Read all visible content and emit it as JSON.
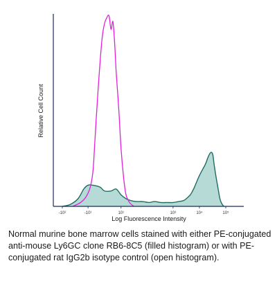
{
  "chart_data": {
    "type": "area",
    "xlabel": "Log Fluorescence Intensity",
    "ylabel": "Relative Cell Count",
    "x_scale": "biexponential",
    "x_ticks": [
      {
        "value": -100,
        "label": "-10²"
      },
      {
        "value": -10,
        "label": "-10¹"
      },
      {
        "value": 10,
        "label": "10¹"
      },
      {
        "value": 1000,
        "label": "10³"
      },
      {
        "value": 10000,
        "label": "10⁴"
      },
      {
        "value": 100000,
        "label": "10⁵"
      }
    ],
    "ylim": [
      0,
      1
    ],
    "grid": false,
    "legend": "none",
    "series": [
      {
        "fill": "filled",
        "line_color": "#1f6b63",
        "fill_color": "#a9d4cf",
        "points": [
          [
            -100,
            0.0
          ],
          [
            -50,
            0.01
          ],
          [
            -25,
            0.04
          ],
          [
            -15,
            0.09
          ],
          [
            -10,
            0.11
          ],
          [
            -6,
            0.11
          ],
          [
            -2,
            0.1
          ],
          [
            0,
            0.08
          ],
          [
            3,
            0.08
          ],
          [
            6,
            0.09
          ],
          [
            10,
            0.06
          ],
          [
            16,
            0.04
          ],
          [
            25,
            0.03
          ],
          [
            40,
            0.025
          ],
          [
            70,
            0.025
          ],
          [
            120,
            0.02
          ],
          [
            200,
            0.025
          ],
          [
            350,
            0.02
          ],
          [
            600,
            0.02
          ],
          [
            1000,
            0.02
          ],
          [
            1600,
            0.025
          ],
          [
            2500,
            0.03
          ],
          [
            3500,
            0.045
          ],
          [
            4500,
            0.06
          ],
          [
            5500,
            0.08
          ],
          [
            6500,
            0.1
          ],
          [
            8000,
            0.13
          ],
          [
            10000,
            0.16
          ],
          [
            13000,
            0.19
          ],
          [
            17000,
            0.22
          ],
          [
            22000,
            0.26
          ],
          [
            27000,
            0.28
          ],
          [
            32000,
            0.27
          ],
          [
            36000,
            0.22
          ],
          [
            42000,
            0.16
          ],
          [
            50000,
            0.1
          ],
          [
            60000,
            0.04
          ],
          [
            70000,
            0.015
          ],
          [
            85000,
            0.0
          ]
        ]
      },
      {
        "fill": "open",
        "line_color": "#e21fd8",
        "points": [
          [
            -40,
            0.0
          ],
          [
            -20,
            0.02
          ],
          [
            -12,
            0.05
          ],
          [
            -8,
            0.1
          ],
          [
            -6,
            0.18
          ],
          [
            -5,
            0.3
          ],
          [
            -4,
            0.45
          ],
          [
            -3,
            0.6
          ],
          [
            -2,
            0.75
          ],
          [
            -1,
            0.88
          ],
          [
            0,
            0.95
          ],
          [
            1,
            0.98
          ],
          [
            2,
            0.99
          ],
          [
            3,
            0.92
          ],
          [
            4,
            0.96
          ],
          [
            5,
            0.85
          ],
          [
            6,
            0.7
          ],
          [
            8,
            0.5
          ],
          [
            10,
            0.3
          ],
          [
            13,
            0.14
          ],
          [
            16,
            0.06
          ],
          [
            22,
            0.02
          ],
          [
            32,
            0.0
          ]
        ]
      }
    ]
  },
  "caption": "Normal murine bone marrow cells stained with either PE-conjugated anti-mouse Ly6GC clone RB6-8C5 (filled histogram) or with PE-conjugated rat IgG2b isotype control (open histogram)."
}
